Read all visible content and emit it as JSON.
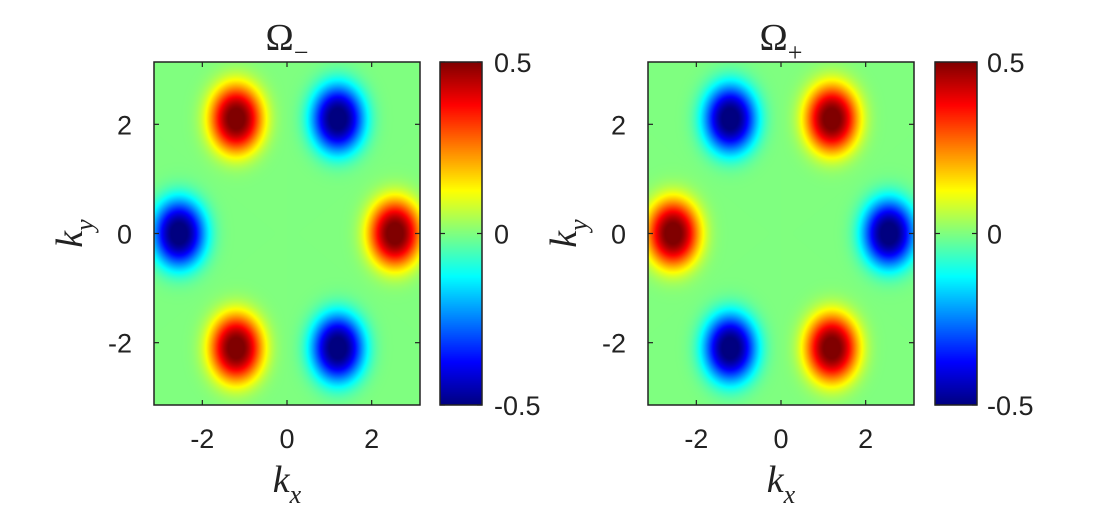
{
  "chart_data": [
    {
      "type": "heatmap",
      "title": "Ω",
      "title_subscript": "−",
      "xlabel": "k",
      "xlabel_subscript": "x",
      "ylabel": "k",
      "ylabel_subscript": "y",
      "xlim": [
        -3.1416,
        3.1416
      ],
      "ylim": [
        -3.1416,
        3.1416
      ],
      "xticks": [
        -2,
        0,
        2
      ],
      "yticks": [
        2,
        0,
        -2
      ],
      "xtick_labels": [
        "-2",
        "0",
        "2"
      ],
      "ytick_labels": [
        "2",
        "0",
        "-2"
      ],
      "colormap": "jet",
      "clim": [
        -0.5,
        0.5
      ],
      "colorbar_ticks": [
        0.5,
        0,
        -0.5
      ],
      "colorbar_tick_labels": [
        "0.5",
        "0",
        "-0.5"
      ],
      "colorbar_position": "right",
      "extrema": [
        {
          "kx": -1.2,
          "ky": 2.1,
          "value": 0.5,
          "sign": "positive"
        },
        {
          "kx": 1.2,
          "ky": 2.1,
          "value": -0.5,
          "sign": "negative"
        },
        {
          "kx": -2.55,
          "ky": 0.0,
          "value": -0.5,
          "sign": "negative"
        },
        {
          "kx": 2.55,
          "ky": 0.0,
          "value": 0.5,
          "sign": "positive"
        },
        {
          "kx": -1.2,
          "ky": -2.1,
          "value": 0.5,
          "sign": "positive"
        },
        {
          "kx": 1.2,
          "ky": -2.1,
          "value": -0.5,
          "sign": "negative"
        }
      ]
    },
    {
      "type": "heatmap",
      "title": "Ω",
      "title_subscript": "+",
      "xlabel": "k",
      "xlabel_subscript": "x",
      "ylabel": "k",
      "ylabel_subscript": "y",
      "xlim": [
        -3.1416,
        3.1416
      ],
      "ylim": [
        -3.1416,
        3.1416
      ],
      "xticks": [
        -2,
        0,
        2
      ],
      "yticks": [
        2,
        0,
        -2
      ],
      "xtick_labels": [
        "-2",
        "0",
        "2"
      ],
      "ytick_labels": [
        "2",
        "0",
        "-2"
      ],
      "colormap": "jet",
      "clim": [
        -0.5,
        0.5
      ],
      "colorbar_ticks": [
        0.5,
        0,
        -0.5
      ],
      "colorbar_tick_labels": [
        "0.5",
        "0",
        "-0.5"
      ],
      "colorbar_position": "right",
      "extrema": [
        {
          "kx": -1.2,
          "ky": 2.1,
          "value": -0.5,
          "sign": "negative"
        },
        {
          "kx": 1.2,
          "ky": 2.1,
          "value": 0.5,
          "sign": "positive"
        },
        {
          "kx": -2.55,
          "ky": 0.0,
          "value": 0.5,
          "sign": "positive"
        },
        {
          "kx": 2.55,
          "ky": 0.0,
          "value": -0.5,
          "sign": "negative"
        },
        {
          "kx": -1.2,
          "ky": -2.1,
          "value": -0.5,
          "sign": "negative"
        },
        {
          "kx": 1.2,
          "ky": -2.1,
          "value": 0.5,
          "sign": "positive"
        }
      ]
    }
  ],
  "colors": {
    "background": "#ffffff",
    "axis": "#222222",
    "tick_text": "#222222"
  }
}
